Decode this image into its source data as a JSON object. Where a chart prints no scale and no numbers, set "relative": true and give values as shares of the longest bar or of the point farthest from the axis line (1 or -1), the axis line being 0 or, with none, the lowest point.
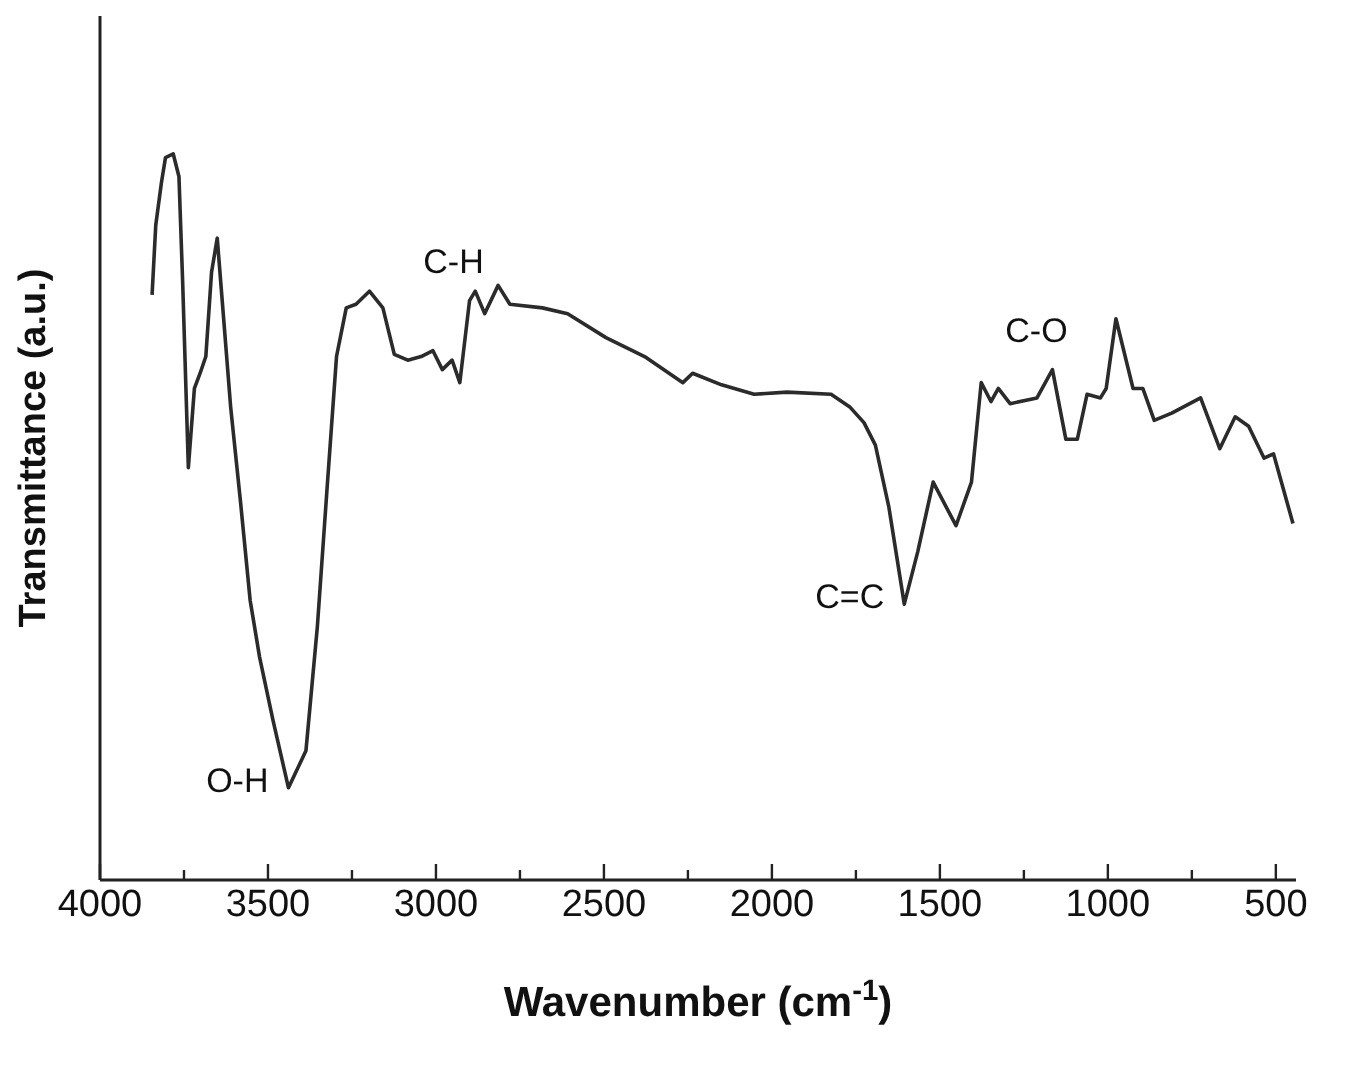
{
  "chart_data": {
    "type": "line",
    "relative": true,
    "xlabel": "Wavenumber (cm$^{-1}$)",
    "ylabel": "Transmittance (a.u.)",
    "xlim": [
      4000,
      440
    ],
    "xticks": [
      4000,
      {
        "value": 3750,
        "label": null
      },
      3500,
      {
        "value": 3250,
        "label": null
      },
      3000,
      {
        "value": 2750,
        "label": null
      },
      2500,
      {
        "value": 2250,
        "label": null
      },
      2000,
      {
        "value": 1750,
        "label": null
      },
      1500,
      {
        "value": 1250,
        "label": null
      },
      1000,
      {
        "value": 750,
        "label": null
      },
      500
    ],
    "grid": false,
    "marker": "none",
    "line_style": "solid",
    "x": [
      3845,
      3834,
      3817,
      3805,
      3782,
      3765,
      3754,
      3737,
      3719,
      3702,
      3685,
      3668,
      3651,
      3639,
      3611,
      3582,
      3553,
      3525,
      3485,
      3439,
      3387,
      3353,
      3324,
      3296,
      3267,
      3238,
      3198,
      3158,
      3124,
      3084,
      3044,
      3009,
      2981,
      2952,
      2929,
      2900,
      2883,
      2855,
      2815,
      2780,
      2683,
      2608,
      2494,
      2379,
      2265,
      2236,
      2150,
      2053,
      1955,
      1824,
      1767,
      1726,
      1692,
      1652,
      1606,
      1566,
      1520,
      1452,
      1406,
      1377,
      1348,
      1326,
      1291,
      1211,
      1165,
      1125,
      1091,
      1062,
      1022,
      1005,
      976,
      925,
      896,
      862,
      810,
      724,
      667,
      621,
      581,
      535,
      507,
      449
    ],
    "series": [
      {
        "color": "#2b2b2b",
        "values": [
          0.806,
          0.902,
          0.961,
          0.995,
          1.0,
          0.969,
          0.824,
          0.568,
          0.677,
          0.698,
          0.721,
          0.837,
          0.884,
          0.814,
          0.651,
          0.522,
          0.385,
          0.307,
          0.22,
          0.127,
          0.178,
          0.349,
          0.54,
          0.721,
          0.788,
          0.793,
          0.811,
          0.788,
          0.724,
          0.716,
          0.721,
          0.729,
          0.703,
          0.716,
          0.685,
          0.798,
          0.811,
          0.78,
          0.819,
          0.793,
          0.788,
          0.78,
          0.747,
          0.721,
          0.685,
          0.698,
          0.682,
          0.669,
          0.672,
          0.669,
          0.651,
          0.63,
          0.599,
          0.514,
          0.38,
          0.452,
          0.548,
          0.488,
          0.548,
          0.685,
          0.659,
          0.677,
          0.656,
          0.664,
          0.703,
          0.607,
          0.607,
          0.669,
          0.664,
          0.677,
          0.773,
          0.677,
          0.677,
          0.633,
          0.643,
          0.664,
          0.594,
          0.638,
          0.625,
          0.581,
          0.587,
          0.491
        ]
      }
    ],
    "annotations": [
      {
        "text": "O-H",
        "x": 3439,
        "y": 0.127
      },
      {
        "text": "C-H",
        "x": 2900,
        "y": 0.798
      },
      {
        "text": "C=C",
        "x": 1606,
        "y": 0.38
      },
      {
        "text": "C-O",
        "x": 1165,
        "y": 0.703
      }
    ]
  }
}
